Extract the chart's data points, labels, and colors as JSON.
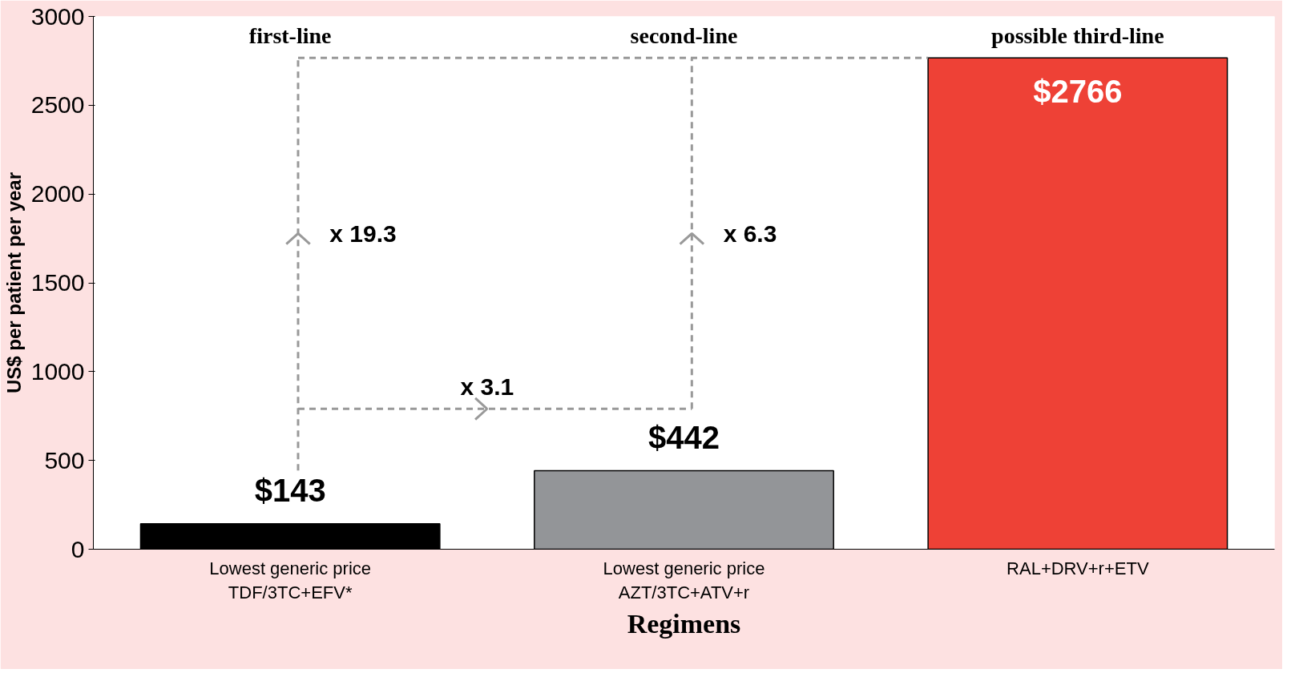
{
  "chart_data": {
    "type": "bar",
    "categories": [
      "Lowest generic price\nTDF/3TC+EFV*",
      "Lowest generic price\nAZT/3TC+ATV+r",
      "RAL+DRV+r+ETV"
    ],
    "values": [
      143,
      442,
      2766
    ],
    "colors": [
      "#000000",
      "#939598",
      "#ee4136"
    ],
    "value_labels": [
      "$143",
      "$442",
      "$2766"
    ],
    "xlabel": "Regimens",
    "ylabel": "US$ per patient per year",
    "ylim": [
      0,
      3000
    ],
    "yticks": [
      0,
      500,
      1000,
      1500,
      2000,
      2500,
      3000
    ],
    "annotations": [
      "first-line",
      "second-line",
      "possible third-line",
      "x 19.3",
      "x 3.1",
      "x 6.3"
    ]
  }
}
